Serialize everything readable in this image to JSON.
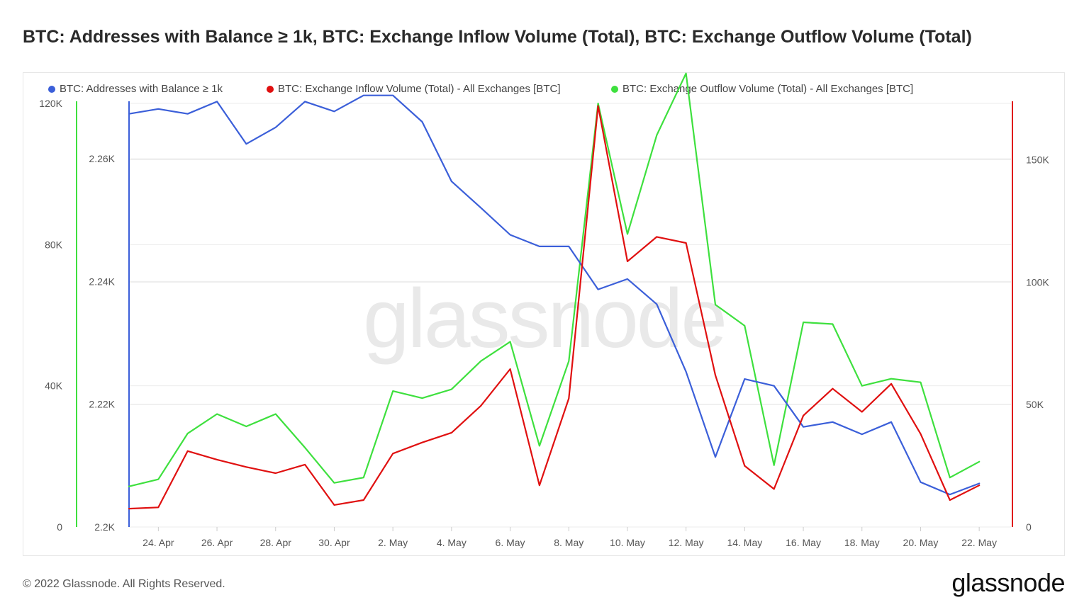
{
  "header": {
    "title": "BTC: Addresses with Balance ≥ 1k, BTC: Exchange Inflow Volume (Total), BTC: Exchange Outflow Volume (Total)"
  },
  "footer": {
    "copyright": "© 2022 Glassnode. All Rights Reserved.",
    "logo_text": "glassnode"
  },
  "watermark": "glassnode",
  "colors": {
    "addresses": "#3b5fd9",
    "inflow": "#e01010",
    "outflow": "#3ee03e",
    "grid": "#ebebeb"
  },
  "chart_data": {
    "type": "line",
    "title": "BTC: Addresses with Balance ≥ 1k, BTC: Exchange Inflow Volume (Total), BTC: Exchange Outflow Volume (Total)",
    "legend_position": "top",
    "grid": true,
    "x": [
      "2022-04-23",
      "2022-04-24",
      "2022-04-25",
      "2022-04-26",
      "2022-04-27",
      "2022-04-28",
      "2022-04-29",
      "2022-04-30",
      "2022-05-01",
      "2022-05-02",
      "2022-05-03",
      "2022-05-04",
      "2022-05-05",
      "2022-05-06",
      "2022-05-07",
      "2022-05-08",
      "2022-05-09",
      "2022-05-10",
      "2022-05-11",
      "2022-05-12",
      "2022-05-13",
      "2022-05-14",
      "2022-05-15",
      "2022-05-16",
      "2022-05-17",
      "2022-05-18",
      "2022-05-19",
      "2022-05-20",
      "2022-05-21",
      "2022-05-22"
    ],
    "x_tick_labels": [
      "24. Apr",
      "26. Apr",
      "28. Apr",
      "30. Apr",
      "2. May",
      "4. May",
      "6. May",
      "8. May",
      "10. May",
      "12. May",
      "14. May",
      "16. May",
      "18. May",
      "20. May",
      "22. May"
    ],
    "x_tick_dates": [
      "2022-04-24",
      "2022-04-26",
      "2022-04-28",
      "2022-04-30",
      "2022-05-02",
      "2022-05-04",
      "2022-05-06",
      "2022-05-08",
      "2022-05-10",
      "2022-05-12",
      "2022-05-14",
      "2022-05-16",
      "2022-05-18",
      "2022-05-20",
      "2022-05-22"
    ],
    "axes": {
      "addresses": {
        "ylim": [
          2200,
          2269
        ],
        "ticks": [
          2200,
          2220,
          2240,
          2260
        ],
        "tick_labels": [
          "2.2K",
          "2.22K",
          "2.24K",
          "2.26K"
        ]
      },
      "outflow": {
        "ylim": [
          0,
          120000
        ],
        "ticks": [
          0,
          40000,
          80000,
          120000
        ],
        "tick_labels": [
          "0",
          "40K",
          "80K",
          "120K"
        ]
      },
      "inflow": {
        "ylim": [
          0,
          173000
        ],
        "ticks": [
          0,
          50000,
          100000,
          150000
        ],
        "tick_labels": [
          "0",
          "50K",
          "100K",
          "150K"
        ]
      }
    },
    "series": [
      {
        "name": "BTC: Addresses with Balance ≥ 1k",
        "axis": "addresses",
        "values": [
          2267.3,
          2268.1,
          2267.3,
          2269.3,
          2262.4,
          2265.1,
          2269.3,
          2267.7,
          2270.3,
          2270.3,
          2266.0,
          2256.3,
          2252.0,
          2247.6,
          2245.7,
          2245.7,
          2238.7,
          2240.4,
          2236.3,
          2225.3,
          2211.4,
          2224.1,
          2223.0,
          2216.3,
          2217.1,
          2215.1,
          2217.1,
          2207.3,
          2205.3,
          2207.1
        ]
      },
      {
        "name": "BTC: Exchange Inflow Volume (Total) - All Exchanges [BTC]",
        "axis": "inflow",
        "values": [
          7500,
          8000,
          31000,
          27500,
          24500,
          22000,
          25500,
          9000,
          11000,
          30000,
          34500,
          38500,
          49500,
          64500,
          17000,
          52500,
          172000,
          108500,
          118500,
          116000,
          62000,
          25000,
          15500,
          45500,
          56500,
          47000,
          58500,
          38000,
          11000,
          17000
        ]
      },
      {
        "name": "BTC: Exchange Outflow Volume (Total) - All Exchanges [BTC]",
        "axis": "outflow",
        "values": [
          11500,
          13500,
          26500,
          32000,
          28500,
          32000,
          22500,
          12500,
          14000,
          38500,
          36500,
          39000,
          47000,
          52500,
          23000,
          47000,
          120000,
          83000,
          111000,
          128500,
          63000,
          57000,
          17500,
          58000,
          57500,
          40000,
          42000,
          41000,
          14000,
          18500
        ]
      }
    ]
  }
}
